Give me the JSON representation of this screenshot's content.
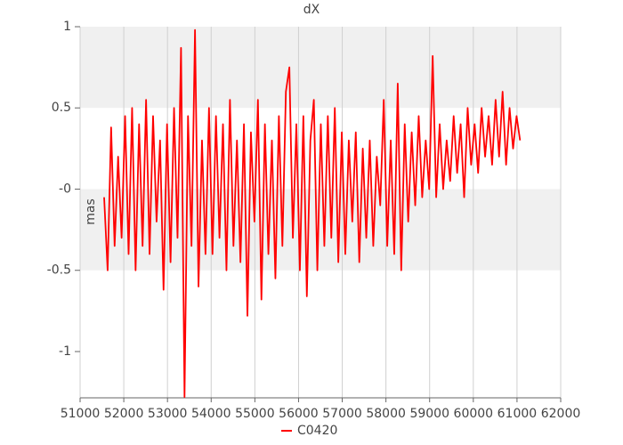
{
  "chart_data": {
    "type": "line",
    "title": "dX",
    "y_label": "mas",
    "x": [
      51550,
      51630,
      51710,
      51790,
      51870,
      51950,
      52030,
      52110,
      52190,
      52270,
      52350,
      52430,
      52510,
      52590,
      52670,
      52750,
      52830,
      52910,
      52990,
      53070,
      53150,
      53230,
      53310,
      53390,
      53470,
      53550,
      53630,
      53710,
      53790,
      53870,
      53950,
      54030,
      54110,
      54190,
      54270,
      54350,
      54430,
      54510,
      54590,
      54670,
      54750,
      54830,
      54910,
      54990,
      55070,
      55150,
      55230,
      55310,
      55390,
      55470,
      55550,
      55630,
      55710,
      55790,
      55870,
      55950,
      56030,
      56110,
      56190,
      56270,
      56350,
      56430,
      56510,
      56590,
      56670,
      56750,
      56830,
      56910,
      56990,
      57070,
      57150,
      57230,
      57310,
      57390,
      57470,
      57550,
      57630,
      57710,
      57790,
      57870,
      57950,
      58030,
      58110,
      58190,
      58270,
      58350,
      58430,
      58510,
      58590,
      58670,
      58750,
      58830,
      58910,
      58990,
      59070,
      59150,
      59230,
      59310,
      59390,
      59470,
      59550,
      59630,
      59710,
      59790,
      59870,
      59950,
      60030,
      60110,
      60190,
      60270,
      60350,
      60430,
      60510,
      60590,
      60670,
      60750,
      60830,
      60910,
      60990,
      61070
    ],
    "series": [
      {
        "name": "C0420",
        "color": "#ff0000",
        "values": [
          -0.05,
          -0.5,
          0.38,
          -0.35,
          0.2,
          -0.3,
          0.45,
          -0.4,
          0.5,
          -0.5,
          0.4,
          -0.35,
          0.55,
          -0.4,
          0.45,
          -0.2,
          0.3,
          -0.62,
          0.4,
          -0.45,
          0.5,
          -0.3,
          0.87,
          -1.28,
          0.45,
          -0.35,
          0.98,
          -0.6,
          0.3,
          -0.4,
          0.5,
          -0.4,
          0.45,
          -0.3,
          0.4,
          -0.5,
          0.55,
          -0.35,
          0.3,
          -0.45,
          0.4,
          -0.78,
          0.35,
          -0.2,
          0.55,
          -0.68,
          0.4,
          -0.4,
          0.3,
          -0.55,
          0.45,
          -0.35,
          0.6,
          0.75,
          -0.3,
          0.4,
          -0.5,
          0.45,
          -0.66,
          0.3,
          0.55,
          -0.5,
          0.4,
          -0.35,
          0.45,
          -0.3,
          0.5,
          -0.45,
          0.35,
          -0.4,
          0.3,
          -0.2,
          0.35,
          -0.45,
          0.25,
          -0.3,
          0.3,
          -0.35,
          0.2,
          -0.1,
          0.55,
          -0.35,
          0.3,
          -0.4,
          0.65,
          -0.5,
          0.4,
          -0.2,
          0.35,
          -0.1,
          0.45,
          -0.05,
          0.3,
          0.0,
          0.82,
          -0.05,
          0.4,
          0.0,
          0.3,
          0.05,
          0.45,
          0.1,
          0.4,
          -0.05,
          0.5,
          0.15,
          0.4,
          0.1,
          0.5,
          0.2,
          0.45,
          0.15,
          0.55,
          0.2,
          0.6,
          0.15,
          0.5,
          0.25,
          0.45,
          0.3
        ]
      }
    ],
    "xlim": [
      51000,
      62000
    ],
    "xticks": [
      51000,
      52000,
      53000,
      54000,
      55000,
      56000,
      57000,
      58000,
      59000,
      60000,
      61000,
      62000
    ],
    "ylim": [
      -1.285,
      1
    ],
    "yticks": [
      1,
      0.5,
      {
        "value": 0,
        "label": "-0"
      },
      -0.5,
      -1
    ],
    "grid": true,
    "bands": true,
    "legend": "bottom"
  }
}
